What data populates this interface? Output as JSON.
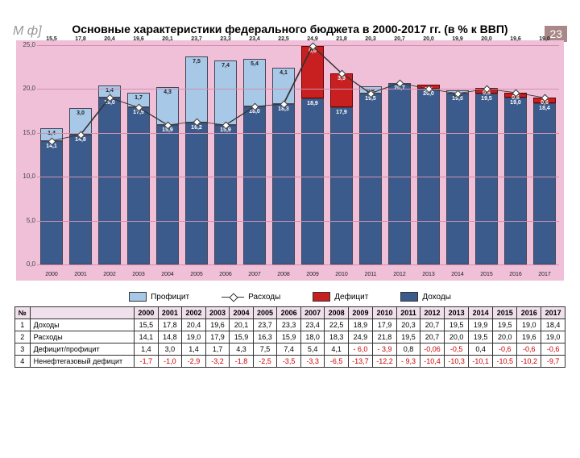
{
  "page_number": "23",
  "logo_text": "М ф]",
  "title": "Основные характеристики федерального бюджета в 2000-2017 гг. (в % к ВВП)",
  "chart": {
    "type": "stacked-bar-with-line",
    "ylim": [
      0,
      25
    ],
    "ytick_step": 5,
    "background_color": "#f0c0d8",
    "grid_color": "#d090b0",
    "colors": {
      "income": "#3b5b8c",
      "surplus": "#a8c8e8",
      "deficit": "#c82020",
      "marker_fill": "#ffffff",
      "marker_border": "#333333"
    },
    "years": [
      "2000",
      "2001",
      "2002",
      "2003",
      "2004",
      "2005",
      "2006",
      "2007",
      "2008",
      "2009",
      "2010",
      "2011",
      "2012",
      "2013",
      "2014",
      "2015",
      "2016",
      "2017"
    ],
    "income": [
      14.1,
      14.8,
      19.0,
      17.9,
      15.9,
      16.2,
      15.9,
      18.0,
      18.3,
      18.9,
      17.9,
      19.5,
      20.7,
      20.0,
      19.5,
      19.5,
      19.0,
      18.4
    ],
    "surplus": [
      1.4,
      3.0,
      1.4,
      1.7,
      4.3,
      7.5,
      7.4,
      5.4,
      4.1,
      null,
      null,
      0.8,
      null,
      null,
      0.4,
      null,
      null,
      null
    ],
    "deficit": [
      null,
      null,
      null,
      null,
      null,
      null,
      null,
      null,
      null,
      6.0,
      3.9,
      null,
      0.06,
      0.5,
      null,
      0.6,
      0.6,
      0.6
    ],
    "top_labels": [
      "15,5",
      "17,8",
      "20,4",
      "19,6",
      "20,1",
      "23,7",
      "23,3",
      "23,4",
      "22,5",
      "24,9",
      "21,8",
      "20,3",
      "20,7",
      "20,0",
      "19,9",
      "20,0",
      "19,6",
      "19,0"
    ],
    "expenses": [
      14.1,
      14.8,
      19.0,
      17.9,
      15.9,
      16.3,
      15.9,
      18.0,
      18.3,
      24.9,
      21.8,
      19.5,
      20.7,
      20.0,
      19.5,
      20.0,
      19.6,
      19.0
    ]
  },
  "legend": {
    "surplus": "Профицит",
    "expenses": "Расходы",
    "deficit": "Дефицит",
    "income": "Доходы"
  },
  "table": {
    "columns": [
      "№",
      "",
      "2000",
      "2001",
      "2002",
      "2003",
      "2004",
      "2005",
      "2006",
      "2007",
      "2008",
      "2009",
      "2010",
      "2011",
      "2012",
      "2013",
      "2014",
      "2015",
      "2016",
      "2017"
    ],
    "rows": [
      {
        "n": "1",
        "label": "Доходы",
        "vals": [
          "15,5",
          "17,8",
          "20,4",
          "19,6",
          "20,1",
          "23,7",
          "23,3",
          "23,4",
          "22,5",
          "18,9",
          "17,9",
          "20,3",
          "20,7",
          "19,5",
          "19,9",
          "19,5",
          "19,0",
          "18,4"
        ],
        "neg": []
      },
      {
        "n": "2",
        "label": "Расходы",
        "vals": [
          "14,1",
          "14,8",
          "19,0",
          "17,9",
          "15,9",
          "16,3",
          "15,9",
          "18,0",
          "18,3",
          "24,9",
          "21,8",
          "19,5",
          "20,7",
          "20,0",
          "19,5",
          "20,0",
          "19,6",
          "19,0"
        ],
        "neg": []
      },
      {
        "n": "3",
        "label": "Дефицит/профицит",
        "vals": [
          "1,4",
          "3,0",
          "1,4",
          "1,7",
          "4,3",
          "7,5",
          "7,4",
          "5,4",
          "4,1",
          "- 6,0",
          "- 3,9",
          "0,8",
          "-0,06",
          "-0,5",
          "0,4",
          "-0,6",
          "-0,6",
          "-0,6"
        ],
        "neg": [
          9,
          10,
          12,
          13,
          15,
          16,
          17
        ]
      },
      {
        "n": "4",
        "label": "Ненефтегазовый дефицит",
        "vals": [
          "-1,7",
          "-1,0",
          "-2,9",
          "-3,2",
          "-1,8",
          "-2,5",
          "-3,5",
          "-3,3",
          "-6,5",
          "-13,7",
          "-12,2",
          "- 9,3",
          "-10,4",
          "-10,3",
          "-10,1",
          "-10,5",
          "-10,2",
          "-9,7"
        ],
        "neg": [
          0,
          1,
          2,
          3,
          4,
          5,
          6,
          7,
          8,
          9,
          10,
          11,
          12,
          13,
          14,
          15,
          16,
          17
        ]
      }
    ]
  }
}
